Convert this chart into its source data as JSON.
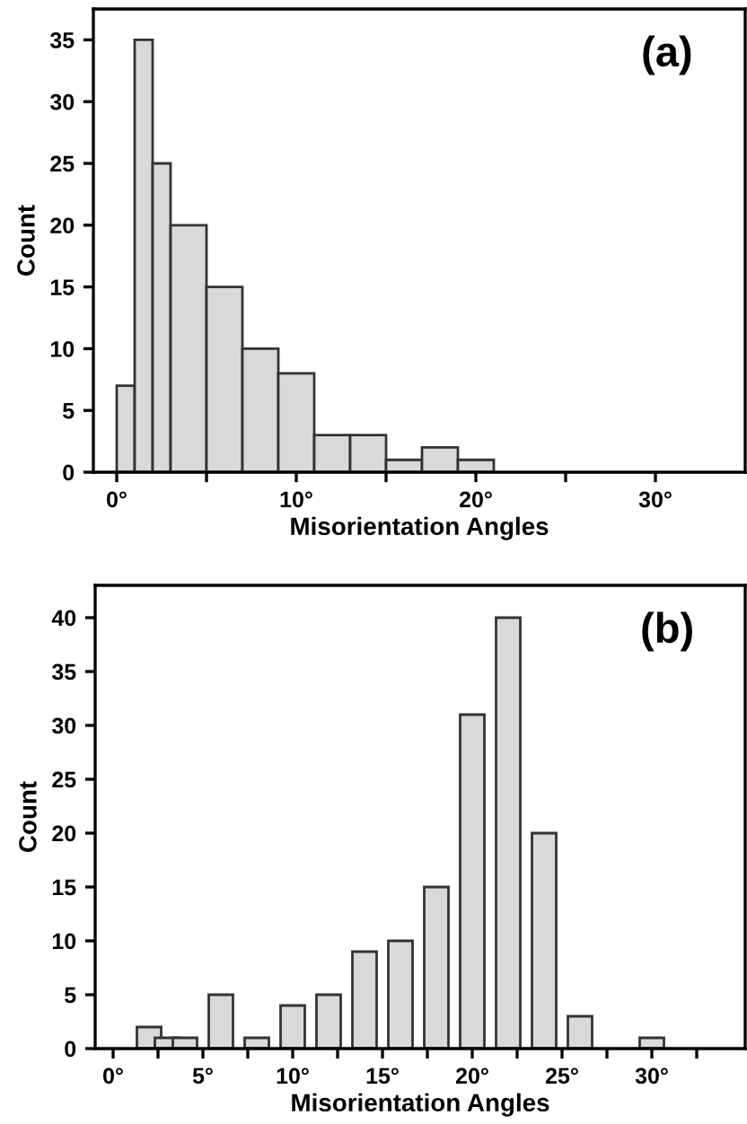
{
  "chart_data": [
    {
      "type": "histogram",
      "xlabel": "Misorientation Angles",
      "ylabel": "Count",
      "annotations": [
        "(a)"
      ],
      "bins": [
        0,
        1,
        2,
        3,
        5,
        7,
        9,
        11,
        13,
        15,
        17,
        19,
        21
      ],
      "values": [
        7,
        35,
        25,
        20,
        15,
        10,
        8,
        3,
        3,
        1,
        2,
        1
      ],
      "color": "#d9d9d9",
      "xlim": [
        -1.3,
        35
      ],
      "xticks": [
        {
          "value": 0,
          "label": "0°"
        },
        {
          "value": 5,
          "label": null
        },
        {
          "value": 10,
          "label": "10°"
        },
        {
          "value": 15,
          "label": null
        },
        {
          "value": 20,
          "label": "20°"
        },
        {
          "value": 25,
          "label": null
        },
        {
          "value": 30,
          "label": "30°"
        }
      ],
      "ylim": [
        0,
        37.5
      ],
      "yticks": [
        0,
        5,
        10,
        15,
        20,
        25,
        30,
        35
      ],
      "grid": false
    },
    {
      "type": "bar",
      "xlabel": "Misorientation Angles",
      "ylabel": "Count",
      "annotations": [
        "(b)"
      ],
      "x": [
        2,
        3,
        4,
        6,
        8,
        10,
        12,
        14,
        16,
        18,
        20,
        22,
        24,
        26,
        30
      ],
      "values": [
        2,
        1,
        1,
        5,
        1,
        4,
        5,
        9,
        10,
        15,
        31,
        40,
        20,
        3,
        1
      ],
      "color": "#d9d9d9",
      "xlim": [
        -1,
        35.2
      ],
      "xticks": [
        {
          "value": 0,
          "label": "0°"
        },
        {
          "value": 2.5,
          "label": null
        },
        {
          "value": 5,
          "label": "5°"
        },
        {
          "value": 7.5,
          "label": null
        },
        {
          "value": 10,
          "label": "10°"
        },
        {
          "value": 12.5,
          "label": null
        },
        {
          "value": 15,
          "label": "15°"
        },
        {
          "value": 17.5,
          "label": null
        },
        {
          "value": 20,
          "label": "20°"
        },
        {
          "value": 22.5,
          "label": null
        },
        {
          "value": 25,
          "label": "25°"
        },
        {
          "value": 27.5,
          "label": null
        },
        {
          "value": 30,
          "label": "30°"
        },
        {
          "value": 32.5,
          "label": null
        }
      ],
      "ylim": [
        0,
        43
      ],
      "yticks": [
        0,
        5,
        10,
        15,
        20,
        25,
        30,
        35,
        40
      ],
      "grid": false
    }
  ]
}
